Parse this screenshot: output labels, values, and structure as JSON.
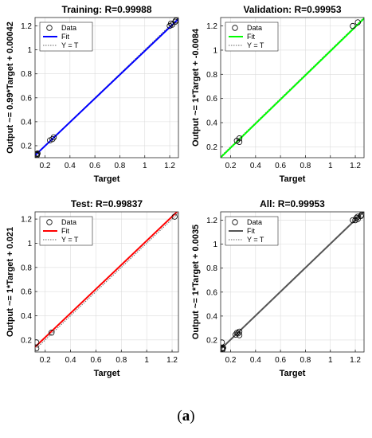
{
  "caption": {
    "prefix": "(",
    "letter": "a",
    "suffix": ")"
  },
  "legend_labels": [
    "Data",
    "Fit",
    "Y = T"
  ],
  "chart_data": [
    {
      "type": "scatter",
      "title": "Training: R=0.99988",
      "xlabel": "Target",
      "ylabel": "Output ~= 0.99*Target + 0.00042",
      "xlim": [
        0.12,
        1.27
      ],
      "ylim": [
        0.1,
        1.27
      ],
      "xticks": [
        0.2,
        0.4,
        0.6,
        0.8,
        1,
        1.2
      ],
      "yticks": [
        0.2,
        0.4,
        0.6,
        0.8,
        1,
        1.2
      ],
      "xtick_labels": [
        "0.2",
        "0.4",
        "0.6",
        "0.8",
        "1",
        "1.2"
      ],
      "ytick_labels": [
        "0.2",
        "0.4",
        "0.6",
        "0.8",
        "1",
        "1.2"
      ],
      "fit_color": "#0000ff",
      "fit": {
        "slope": 0.99,
        "intercept": 0.00042
      },
      "points": [
        {
          "x": 0.13,
          "y": 0.125
        },
        {
          "x": 0.135,
          "y": 0.13
        },
        {
          "x": 0.14,
          "y": 0.135
        },
        {
          "x": 0.135,
          "y": 0.12
        },
        {
          "x": 0.24,
          "y": 0.245
        },
        {
          "x": 0.26,
          "y": 0.255
        },
        {
          "x": 0.27,
          "y": 0.27
        },
        {
          "x": 1.2,
          "y": 1.2
        },
        {
          "x": 1.21,
          "y": 1.22
        },
        {
          "x": 1.22,
          "y": 1.21
        },
        {
          "x": 1.245,
          "y": 1.235
        },
        {
          "x": 1.25,
          "y": 1.245
        }
      ]
    },
    {
      "type": "scatter",
      "title": "Validation: R=0.99953",
      "xlabel": "Target",
      "ylabel": "Output ~= 1*Target + -0.0084",
      "xlim": [
        0.12,
        1.27
      ],
      "ylim": [
        0.11,
        1.27
      ],
      "xticks": [
        0.2,
        0.4,
        0.6,
        0.8,
        1,
        1.2
      ],
      "yticks": [
        0.2,
        0.4,
        0.6,
        0.8,
        1,
        1.2
      ],
      "xtick_labels": [
        "0.2",
        "0.4",
        "0.6",
        "0.8",
        "1",
        "1.2"
      ],
      "ytick_labels": [
        "0.2",
        "0.4",
        "0.6",
        "0.8",
        "1",
        "1.2"
      ],
      "fit_color": "#00ff00",
      "fit": {
        "slope": 1,
        "intercept": -0.0084
      },
      "points": [
        {
          "x": 0.25,
          "y": 0.25
        },
        {
          "x": 0.27,
          "y": 0.27
        },
        {
          "x": 0.27,
          "y": 0.24
        },
        {
          "x": 1.18,
          "y": 1.2
        },
        {
          "x": 1.22,
          "y": 1.23
        }
      ]
    },
    {
      "type": "scatter",
      "title": "Test: R=0.99837",
      "xlabel": "Target",
      "ylabel": "Output ~= 1*Target + 0.021",
      "xlim": [
        0.12,
        1.25
      ],
      "ylim": [
        0.1,
        1.26
      ],
      "xticks": [
        0.2,
        0.4,
        0.6,
        0.8,
        1,
        1.2
      ],
      "yticks": [
        0.2,
        0.4,
        0.6,
        0.8,
        1,
        1.2
      ],
      "xtick_labels": [
        "0.2",
        "0.4",
        "0.6",
        "0.8",
        "1",
        "1.2"
      ],
      "ytick_labels": [
        "0.2",
        "0.4",
        "0.6",
        "0.8",
        "1",
        "1.2"
      ],
      "fit_color": "#ff0000",
      "fit": {
        "slope": 1,
        "intercept": 0.021
      },
      "points": [
        {
          "x": 0.13,
          "y": 0.13
        },
        {
          "x": 0.13,
          "y": 0.18
        },
        {
          "x": 0.25,
          "y": 0.26
        },
        {
          "x": 1.22,
          "y": 1.22
        }
      ]
    },
    {
      "type": "scatter",
      "title": "All: R=0.99953",
      "xlabel": "Target",
      "ylabel": "Output ~= 1*Target + 0.0035",
      "xlim": [
        0.12,
        1.27
      ],
      "ylim": [
        0.1,
        1.27
      ],
      "xticks": [
        0.2,
        0.4,
        0.6,
        0.8,
        1,
        1.2
      ],
      "yticks": [
        0.2,
        0.4,
        0.6,
        0.8,
        1,
        1.2
      ],
      "xtick_labels": [
        "0.2",
        "0.4",
        "0.6",
        "0.8",
        "1",
        "1.2"
      ],
      "ytick_labels": [
        "0.2",
        "0.4",
        "0.6",
        "0.8",
        "1",
        "1.2"
      ],
      "fit_color": "#555555",
      "fit": {
        "slope": 1,
        "intercept": 0.0035
      },
      "points": [
        {
          "x": 0.13,
          "y": 0.125
        },
        {
          "x": 0.135,
          "y": 0.13
        },
        {
          "x": 0.14,
          "y": 0.135
        },
        {
          "x": 0.135,
          "y": 0.12
        },
        {
          "x": 0.13,
          "y": 0.18
        },
        {
          "x": 0.24,
          "y": 0.245
        },
        {
          "x": 0.25,
          "y": 0.26
        },
        {
          "x": 0.26,
          "y": 0.255
        },
        {
          "x": 0.27,
          "y": 0.27
        },
        {
          "x": 0.27,
          "y": 0.24
        },
        {
          "x": 1.18,
          "y": 1.2
        },
        {
          "x": 1.2,
          "y": 1.2
        },
        {
          "x": 1.21,
          "y": 1.22
        },
        {
          "x": 1.22,
          "y": 1.21
        },
        {
          "x": 1.22,
          "y": 1.23
        },
        {
          "x": 1.245,
          "y": 1.235
        },
        {
          "x": 1.25,
          "y": 1.245
        }
      ]
    }
  ]
}
